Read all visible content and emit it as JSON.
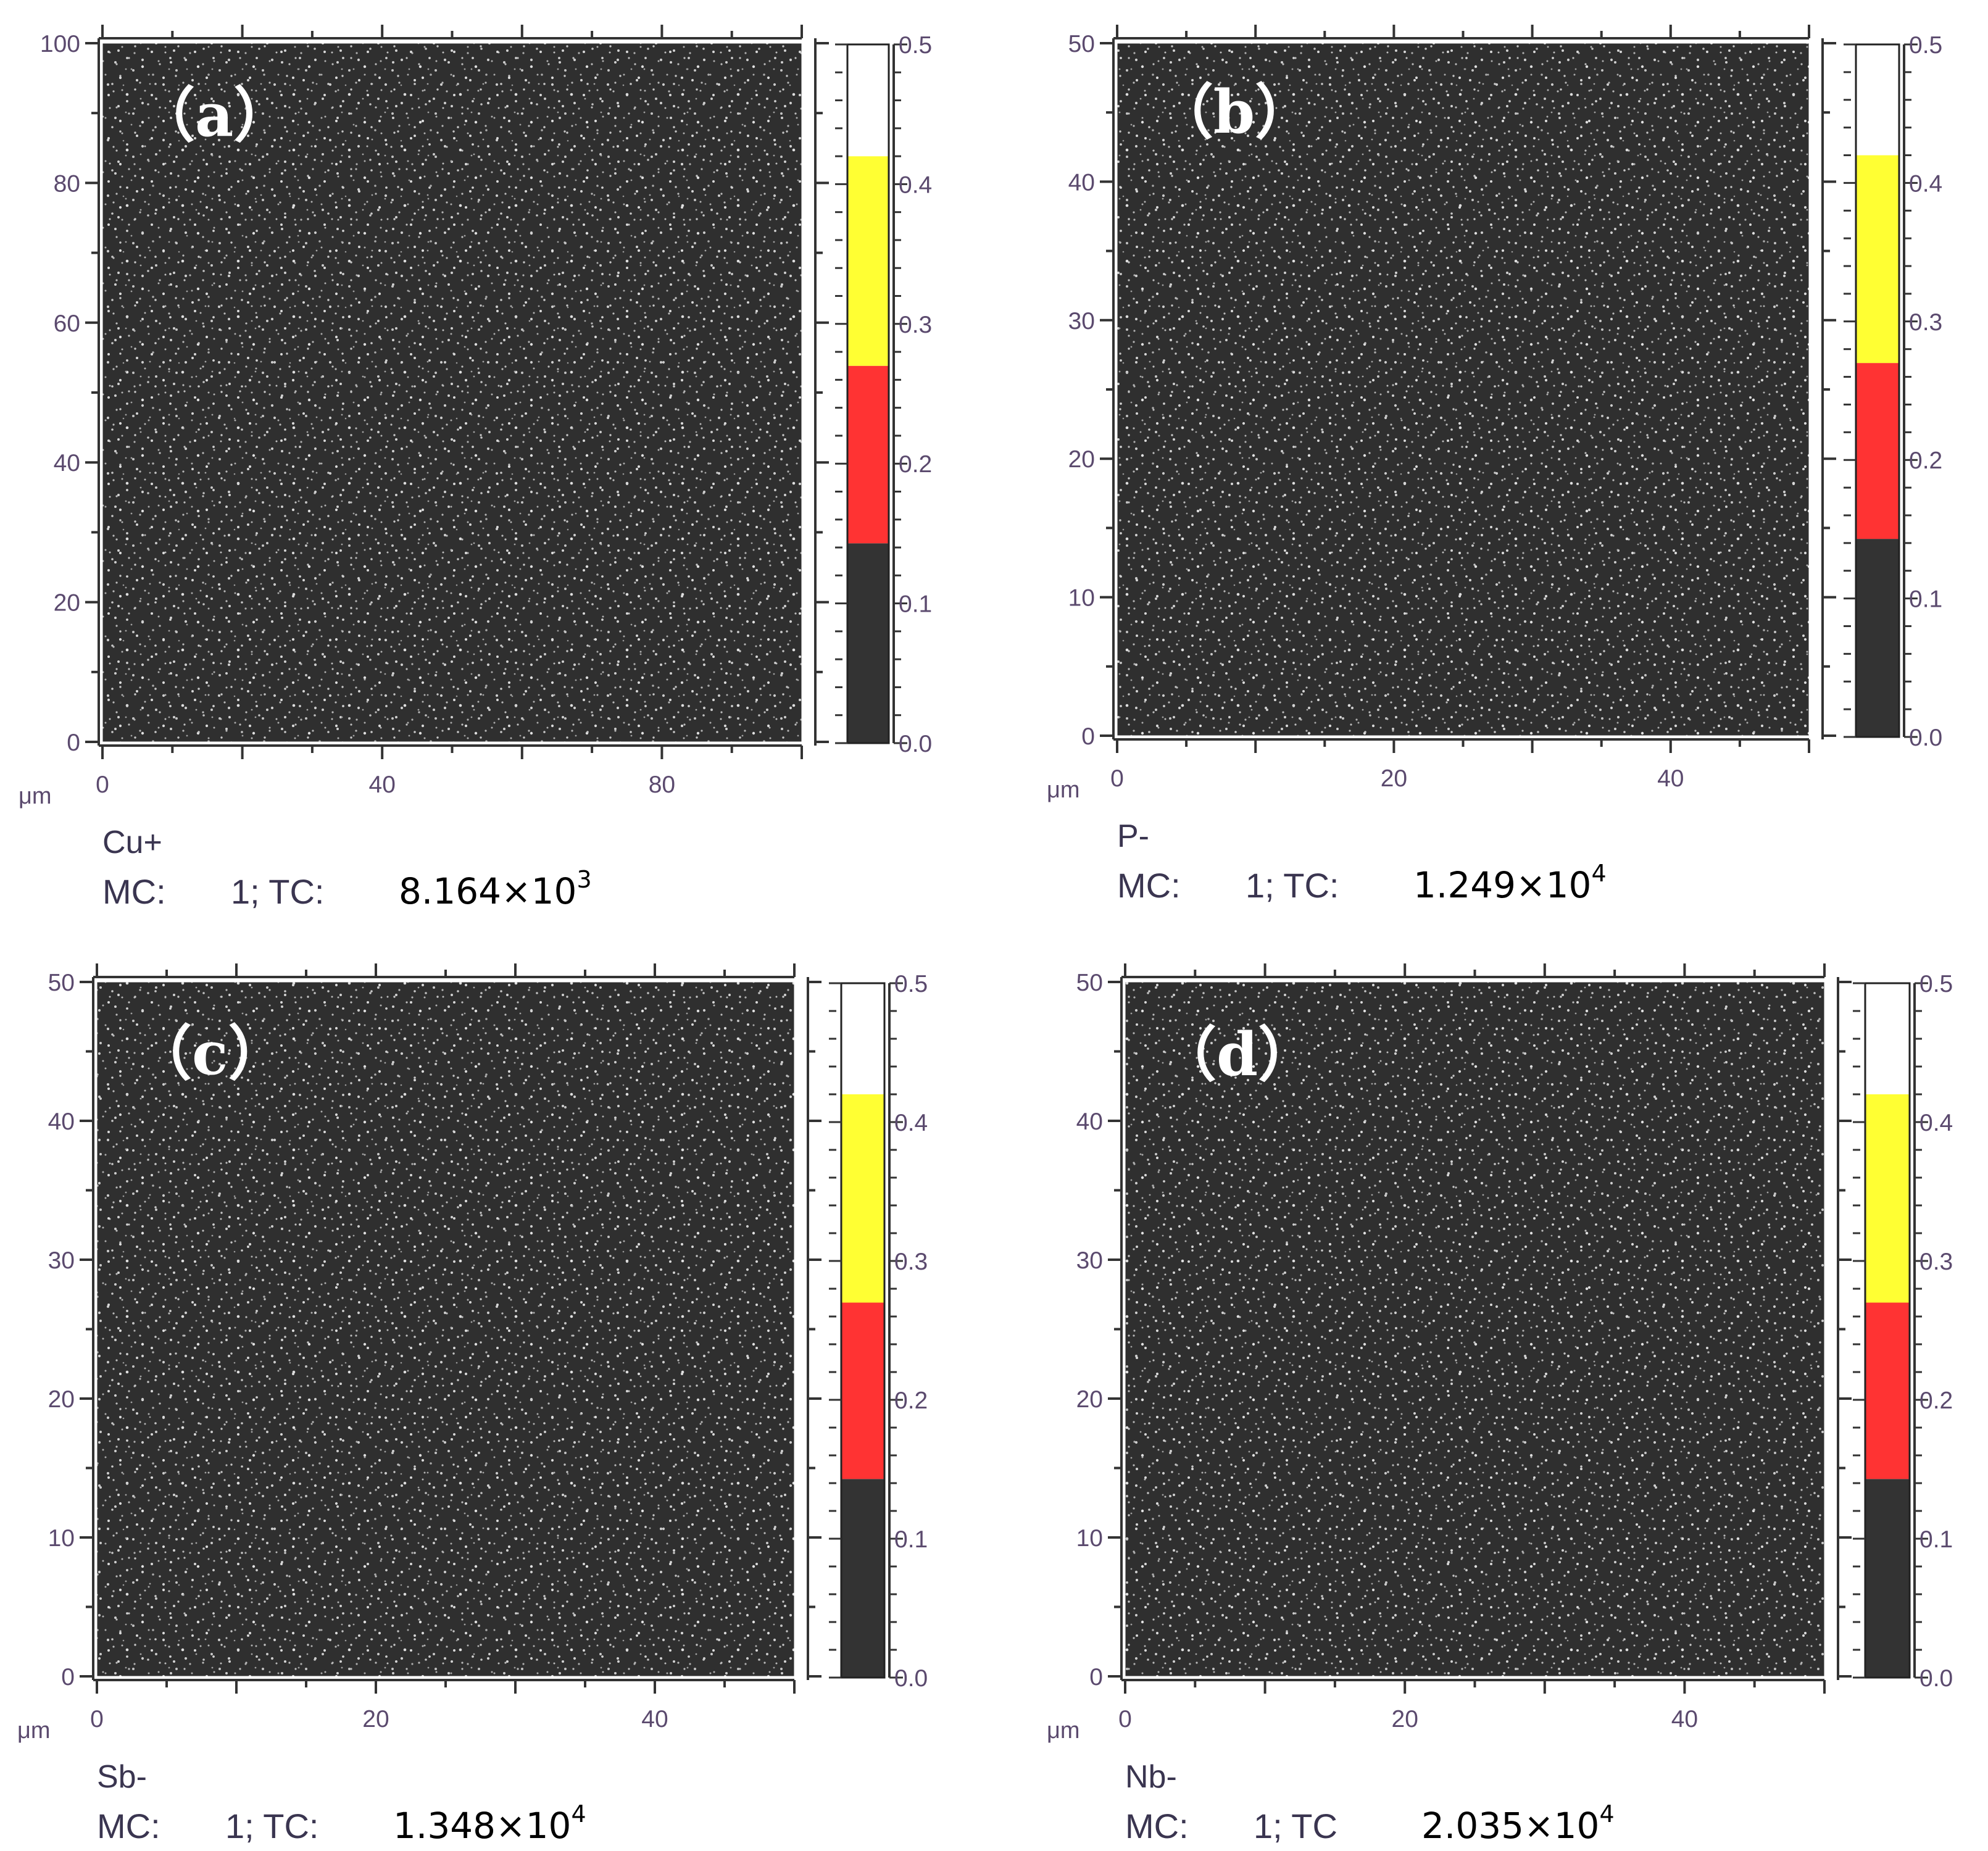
{
  "figure": {
    "panels": [
      {
        "id": "a",
        "tag": "（a）",
        "species": "Cu+",
        "mc_text": "MC:",
        "mc_value": "1; TC:",
        "tc_mantissa": "8.164×10",
        "tc_exponent": "3",
        "unit": "μm",
        "x_ticks": [
          "0",
          "40",
          "80"
        ],
        "x_tick_values": [
          0,
          40,
          80
        ],
        "y_ticks": [
          "0",
          "20",
          "40",
          "60",
          "80",
          "100"
        ],
        "y_tick_values": [
          0,
          20,
          40,
          60,
          80,
          100
        ],
        "axis_range": [
          0,
          100
        ],
        "colorbar_ticks": [
          "0.0",
          "0.1",
          "0.2",
          "0.3",
          "0.4",
          "0.5"
        ],
        "colorbar_bands": [
          {
            "from": 0.0,
            "to": 0.143,
            "color": "#333333"
          },
          {
            "from": 0.143,
            "to": 0.27,
            "color": "#ff3333"
          },
          {
            "from": 0.27,
            "to": 0.42,
            "color": "#ffff33"
          },
          {
            "from": 0.42,
            "to": 0.5,
            "color": "#ffffff"
          }
        ]
      },
      {
        "id": "b",
        "tag": "（b）",
        "species": "P-",
        "mc_text": "MC:",
        "mc_value": "1; TC:",
        "tc_mantissa": "1.249×10",
        "tc_exponent": "4",
        "unit": "μm",
        "x_ticks": [
          "0",
          "20",
          "40"
        ],
        "x_tick_values": [
          0,
          20,
          40
        ],
        "y_ticks": [
          "0",
          "10",
          "20",
          "30",
          "40",
          "50"
        ],
        "y_tick_values": [
          0,
          10,
          20,
          30,
          40,
          50
        ],
        "axis_range": [
          0,
          50
        ],
        "colorbar_ticks": [
          "0.0",
          "0.1",
          "0.2",
          "0.3",
          "0.4",
          "0.5"
        ],
        "colorbar_bands": [
          {
            "from": 0.0,
            "to": 0.143,
            "color": "#333333"
          },
          {
            "from": 0.143,
            "to": 0.27,
            "color": "#ff3333"
          },
          {
            "from": 0.27,
            "to": 0.42,
            "color": "#ffff33"
          },
          {
            "from": 0.42,
            "to": 0.5,
            "color": "#ffffff"
          }
        ]
      },
      {
        "id": "c",
        "tag": "（c）",
        "species": "Sb-",
        "mc_text": "MC:",
        "mc_value": "1; TC:",
        "tc_mantissa": "1.348×10",
        "tc_exponent": "4",
        "unit": "μm",
        "x_ticks": [
          "0",
          "20",
          "40"
        ],
        "x_tick_values": [
          0,
          20,
          40
        ],
        "y_ticks": [
          "0",
          "10",
          "20",
          "30",
          "40",
          "50"
        ],
        "y_tick_values": [
          0,
          10,
          20,
          30,
          40,
          50
        ],
        "axis_range": [
          0,
          50
        ],
        "colorbar_ticks": [
          "0.0",
          "0.1",
          "0.2",
          "0.3",
          "0.4",
          "0.5"
        ],
        "colorbar_bands": [
          {
            "from": 0.0,
            "to": 0.143,
            "color": "#333333"
          },
          {
            "from": 0.143,
            "to": 0.27,
            "color": "#ff3333"
          },
          {
            "from": 0.27,
            "to": 0.42,
            "color": "#ffff33"
          },
          {
            "from": 0.42,
            "to": 0.5,
            "color": "#ffffff"
          }
        ]
      },
      {
        "id": "d",
        "tag": "（d）",
        "species": "Nb-",
        "mc_text": "MC:",
        "mc_value": "1; TC",
        "tc_mantissa": "2.035×10",
        "tc_exponent": "4",
        "unit": "μm",
        "x_ticks": [
          "0",
          "20",
          "40"
        ],
        "x_tick_values": [
          0,
          20,
          40
        ],
        "y_ticks": [
          "0",
          "10",
          "20",
          "30",
          "40",
          "50"
        ],
        "y_tick_values": [
          0,
          10,
          20,
          30,
          40,
          50
        ],
        "axis_range": [
          0,
          50
        ],
        "colorbar_ticks": [
          "0.0",
          "0.1",
          "0.2",
          "0.3",
          "0.4",
          "0.5"
        ],
        "colorbar_bands": [
          {
            "from": 0.0,
            "to": 0.143,
            "color": "#333333"
          },
          {
            "from": 0.143,
            "to": 0.27,
            "color": "#ff3333"
          },
          {
            "from": 0.27,
            "to": 0.42,
            "color": "#ffff33"
          },
          {
            "from": 0.42,
            "to": 0.5,
            "color": "#ffffff"
          }
        ]
      }
    ],
    "colors": {
      "map_background": "#2f2f2f",
      "map_speckle": "#d9d9d9",
      "axis_line": "#333333",
      "tick_label": "#5b4a6e"
    }
  }
}
